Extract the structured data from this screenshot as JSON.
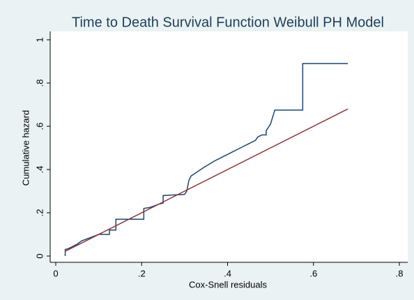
{
  "chart_data": {
    "type": "line",
    "title": "Time to Death Survival Function Weibull PH Model",
    "x_label": "Cox-Snell residuals",
    "y_label": "Cumulative hazard",
    "xlim": [
      0,
      0.8
    ],
    "xticks": [
      0,
      {
        "value": 0.2,
        "label": ".2"
      },
      {
        "value": 0.4,
        "label": ".4"
      },
      {
        "value": 0.6,
        "label": ".6"
      },
      {
        "value": 0.8,
        "label": ".8"
      }
    ],
    "ylim": [
      0,
      1
    ],
    "yticks": [
      0,
      {
        "value": 0.2,
        "label": ".2"
      },
      {
        "value": 0.4,
        "label": ".4"
      },
      {
        "value": 0.6,
        "label": ".6"
      },
      {
        "value": 0.8,
        "label": ".8"
      },
      1
    ],
    "grid": false,
    "series": [
      {
        "color": "#1a476f",
        "x": [
          0.022,
          0.022,
          0.03,
          0.05,
          0.06,
          0.08,
          0.1,
          0.125,
          0.125,
          0.14,
          0.14,
          0.205,
          0.205,
          0.22,
          0.24,
          0.25,
          0.25,
          0.3,
          0.305,
          0.31,
          0.315,
          0.33,
          0.345,
          0.37,
          0.39,
          0.41,
          0.43,
          0.45,
          0.465,
          0.47,
          0.48,
          0.49,
          0.49,
          0.5,
          0.51,
          0.575,
          0.575,
          0.68
        ],
        "values": [
          0,
          0.03,
          0.035,
          0.055,
          0.07,
          0.085,
          0.1,
          0.1,
          0.12,
          0.12,
          0.17,
          0.17,
          0.22,
          0.225,
          0.24,
          0.245,
          0.28,
          0.285,
          0.3,
          0.35,
          0.37,
          0.39,
          0.41,
          0.44,
          0.46,
          0.48,
          0.5,
          0.52,
          0.535,
          0.55,
          0.56,
          0.56,
          0.58,
          0.61,
          0.675,
          0.675,
          0.89,
          0.89
        ]
      },
      {
        "color": "#90353b",
        "x": [
          0.022,
          0.68
        ],
        "values": [
          0.022,
          0.68
        ]
      }
    ]
  }
}
